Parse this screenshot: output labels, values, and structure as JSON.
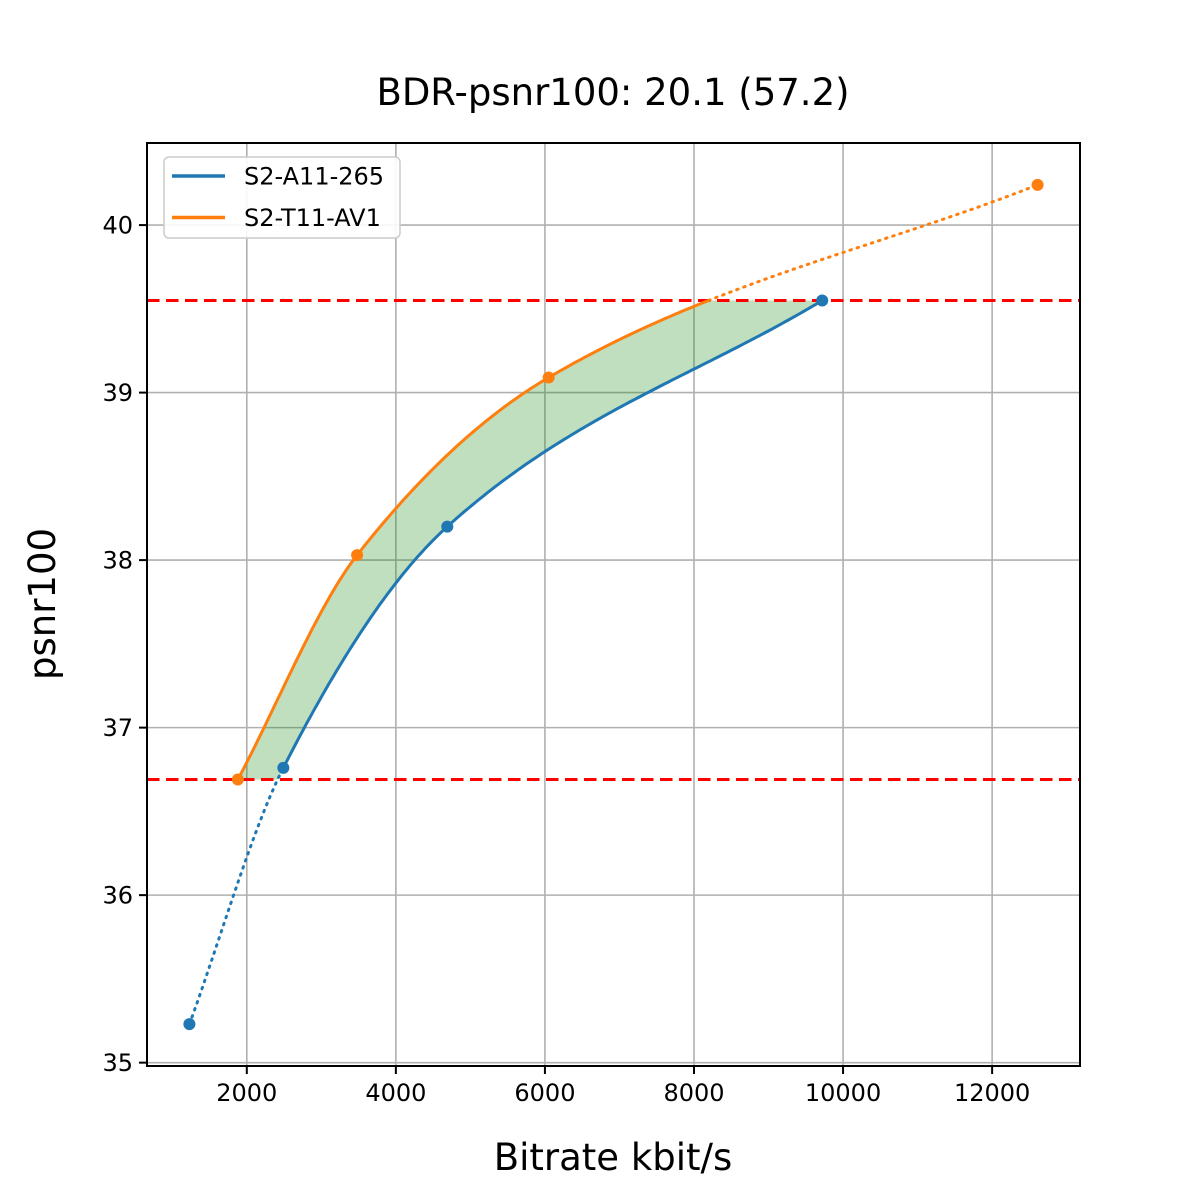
{
  "figure": {
    "background": "#ffffff",
    "spine_color": "#000000",
    "text_color": "#000000"
  },
  "chart_data": {
    "type": "line",
    "title": "BDR-psnr100: 20.1 (57.2)",
    "xlabel": "Bitrate kbit/s",
    "ylabel": "psnr100",
    "xlim": [
      661,
      13179
    ],
    "ylim": [
      34.98,
      40.49
    ],
    "xticks": [
      2000,
      4000,
      6000,
      8000,
      10000,
      12000
    ],
    "yticks": [
      35,
      36,
      37,
      38,
      39,
      40
    ],
    "grid": true,
    "grid_color": "#b0b0b0",
    "legend": {
      "position": "upper left"
    },
    "series": [
      {
        "name": "S2-A11-265",
        "color": "#1f77b4",
        "x": [
          1230,
          2490,
          4690,
          9720
        ],
        "y": [
          35.23,
          36.76,
          38.2,
          39.55
        ],
        "dotted_until_index": 1
      },
      {
        "name": "S2-T11-AV1",
        "color": "#ff7f0e",
        "x": [
          1880,
          3480,
          6050,
          12610
        ],
        "y": [
          36.69,
          38.03,
          39.09,
          40.24
        ],
        "dotted_from_y": 39.55
      }
    ],
    "hlines": {
      "values": [
        36.69,
        39.55
      ],
      "color": "#ff0000",
      "style": "dashed"
    },
    "fill_between": {
      "left_series": 1,
      "right_series": 0,
      "y_range": [
        36.69,
        39.55
      ],
      "color": "#008000",
      "opacity": 0.25
    }
  }
}
